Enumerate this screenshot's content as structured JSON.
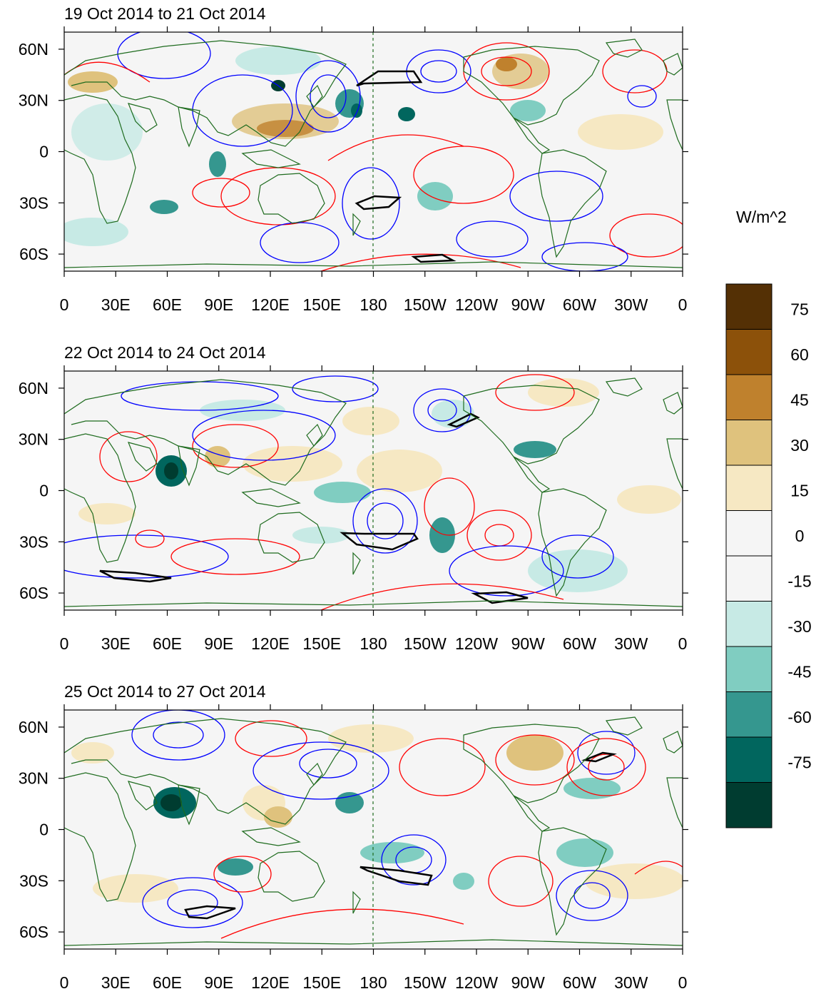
{
  "figure": {
    "units_label": "W/m^2",
    "lon_tick_labels": [
      "0",
      "30E",
      "60E",
      "90E",
      "120E",
      "150E",
      "180",
      "150W",
      "120W",
      "90W",
      "60W",
      "30W",
      "0"
    ],
    "lat_tick_labels": [
      "60N",
      "30N",
      "0",
      "30S",
      "60S"
    ]
  },
  "colorbar": {
    "labels": [
      "75",
      "60",
      "45",
      "30",
      "15",
      "0",
      "-15",
      "-30",
      "-45",
      "-60",
      "-75"
    ],
    "colors": [
      "#543005",
      "#8c510a",
      "#bf812d",
      "#dfc27d",
      "#f6e8c3",
      "#f5f5f5",
      "#f5f5f5",
      "#c7eae5",
      "#80cdc1",
      "#35978f",
      "#01665e",
      "#003c30"
    ]
  },
  "panels": [
    {
      "title": "19 Oct 2014 to 21 Oct 2014"
    },
    {
      "title": "22 Oct 2014 to 24 Oct 2014"
    },
    {
      "title": "25 Oct 2014 to 27 Oct 2014"
    }
  ],
  "chart_data": {
    "type": "heatmap",
    "title": "",
    "variable_units": "W/m^2",
    "levels": [
      -75,
      -60,
      -45,
      -30,
      -15,
      0,
      15,
      30,
      45,
      60,
      75
    ],
    "x_axis": {
      "range": [
        0,
        360
      ],
      "tick_labels": [
        "0",
        "30E",
        "60E",
        "90E",
        "120E",
        "150E",
        "180",
        "150W",
        "120W",
        "90W",
        "60W",
        "30W",
        "0"
      ]
    },
    "y_axis": {
      "range": [
        -70,
        70
      ],
      "tick_labels": [
        "60N",
        "30N",
        "0",
        "30S",
        "60S"
      ]
    },
    "overlay": "positive (red) and negative (blue) contours, bold black significance contours, dashed reference meridian at 180",
    "panels": [
      "19 Oct 2014 to 21 Oct 2014",
      "22 Oct 2014 to 24 Oct 2014",
      "25 Oct 2014 to 27 Oct 2014"
    ]
  }
}
